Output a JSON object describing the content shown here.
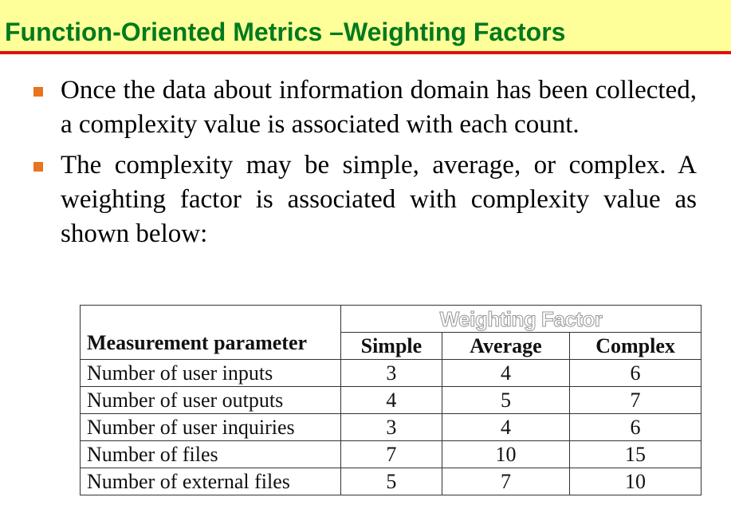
{
  "slide": {
    "title": "Function-Oriented Metrics –Weighting Factors",
    "bullets": [
      "Once the data about information domain has been collected, a complexity value is associated with each count.",
      "The complexity may be simple, average, or complex. A weighting factor is associated with complexity value as shown below:"
    ]
  },
  "table": {
    "group_header": "Weighting Factor",
    "columns": [
      "Measurement parameter",
      "Simple",
      "Average",
      "Complex"
    ],
    "rows": [
      [
        "Number of user inputs",
        "3",
        "4",
        "6"
      ],
      [
        "Number of user outputs",
        "4",
        "5",
        "7"
      ],
      [
        "Number of user inquiries",
        "3",
        "4",
        "6"
      ],
      [
        "Number of files",
        "7",
        "10",
        "15"
      ],
      [
        "Number of external files",
        "5",
        "7",
        "10"
      ]
    ]
  },
  "colors": {
    "title_bar_background": "#ffff99",
    "title_text": "#007a1e",
    "title_underline": "#e01010",
    "bullet_marker": "#e8741e"
  }
}
